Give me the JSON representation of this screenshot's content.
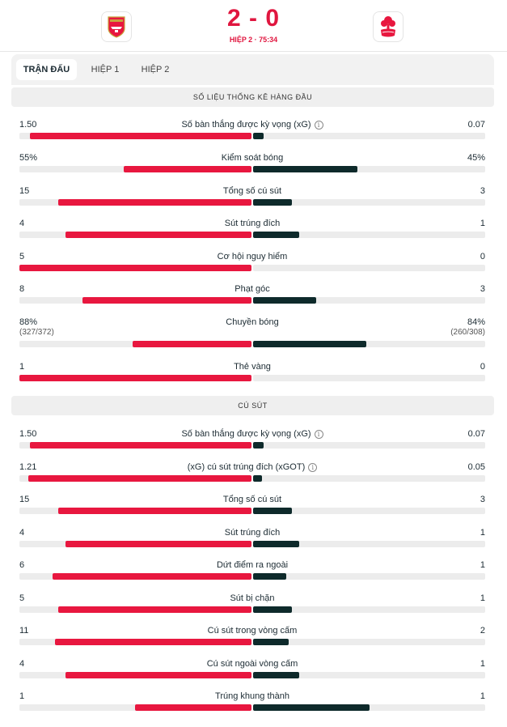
{
  "match": {
    "home_team": "Arsenal",
    "away_team": "Nottingham Forest",
    "score": "2 - 0",
    "period": "HIỆP 2 · 75:34",
    "home_color": "#e8173f",
    "away_color": "#0e2a2b"
  },
  "tabs": [
    "TRẬN ĐẤU",
    "HIỆP 1",
    "HIỆP 2"
  ],
  "sections": [
    {
      "title": "SỐ LIỆU THỐNG KÊ HÀNG ĐẦU",
      "rows": [
        {
          "label": "Số bàn thắng được kỳ vọng (xG)",
          "info": true,
          "home": "1.50",
          "away": "0.07",
          "home_share": 0.955,
          "away_share": 0.045
        },
        {
          "label": "Kiểm soát bóng",
          "info": false,
          "home": "55%",
          "away": "45%",
          "home_share": 0.55,
          "away_share": 0.45
        },
        {
          "label": "Tổng số cú sút",
          "info": false,
          "home": "15",
          "away": "3",
          "home_share": 0.833,
          "away_share": 0.167
        },
        {
          "label": "Sút trúng đích",
          "info": false,
          "home": "4",
          "away": "1",
          "home_share": 0.8,
          "away_share": 0.2
        },
        {
          "label": "Cơ hội nguy hiểm",
          "info": false,
          "home": "5",
          "away": "0",
          "home_share": 1.0,
          "away_share": 0.0
        },
        {
          "label": "Phạt góc",
          "info": false,
          "home": "8",
          "away": "3",
          "home_share": 0.727,
          "away_share": 0.273
        },
        {
          "label": "Chuyền bóng",
          "info": false,
          "home": "88%",
          "away": "84%",
          "home_sub": "(327/372)",
          "away_sub": "(260/308)",
          "home_share": 0.512,
          "away_share": 0.488
        },
        {
          "label": "Thẻ vàng",
          "info": false,
          "home": "1",
          "away": "0",
          "home_share": 1.0,
          "away_share": 0.0
        }
      ]
    },
    {
      "title": "CÚ SÚT",
      "rows": [
        {
          "label": "Số bàn thắng được kỳ vọng (xG)",
          "info": true,
          "home": "1.50",
          "away": "0.07",
          "home_share": 0.955,
          "away_share": 0.045
        },
        {
          "label": "(xG) cú sút trúng đích (xGOT)",
          "info": true,
          "home": "1.21",
          "away": "0.05",
          "home_share": 0.96,
          "away_share": 0.04
        },
        {
          "label": "Tổng số cú sút",
          "info": false,
          "home": "15",
          "away": "3",
          "home_share": 0.833,
          "away_share": 0.167
        },
        {
          "label": "Sút trúng đích",
          "info": false,
          "home": "4",
          "away": "1",
          "home_share": 0.8,
          "away_share": 0.2
        },
        {
          "label": "Dứt điểm ra ngoài",
          "info": false,
          "home": "6",
          "away": "1",
          "home_share": 0.857,
          "away_share": 0.143
        },
        {
          "label": "Sút bị chặn",
          "info": false,
          "home": "5",
          "away": "1",
          "home_share": 0.833,
          "away_share": 0.167
        },
        {
          "label": "Cú sút trong vòng cấm",
          "info": false,
          "home": "11",
          "away": "2",
          "home_share": 0.846,
          "away_share": 0.154
        },
        {
          "label": "Cú sút ngoài vòng cấm",
          "info": false,
          "home": "4",
          "away": "1",
          "home_share": 0.8,
          "away_share": 0.2
        },
        {
          "label": "Trúng khung thành",
          "info": false,
          "home": "1",
          "away": "1",
          "home_share": 0.5,
          "away_share": 0.5
        }
      ]
    }
  ]
}
